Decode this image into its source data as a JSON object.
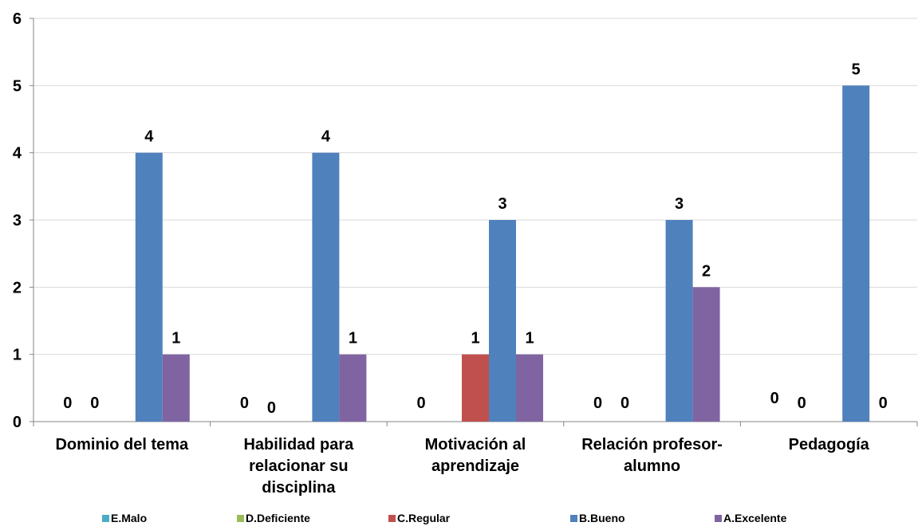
{
  "chart_data": {
    "type": "bar",
    "title": "",
    "xlabel": "",
    "ylabel": "",
    "ylim": [
      0,
      6
    ],
    "yticks": [
      "0",
      "1",
      "2",
      "3",
      "4",
      "5",
      "6"
    ],
    "grid": true,
    "legend_position": "bottom",
    "categories": [
      [
        "Dominio del tema"
      ],
      [
        "Habilidad para",
        "relacionar su",
        "disciplina"
      ],
      [
        "Motivación al",
        "aprendizaje"
      ],
      [
        "Relación profesor-",
        "alumno"
      ],
      [
        "Pedagogía"
      ]
    ],
    "series": [
      {
        "name": "E.Malo",
        "color": "#4bacc6",
        "values": [
          0,
          0,
          0,
          0,
          0
        ]
      },
      {
        "name": "D.Deficiente",
        "color": "#9bbb59",
        "values": [
          0,
          0,
          0,
          0,
          0
        ]
      },
      {
        "name": "C.Regular",
        "color": "#c0504d",
        "values": [
          0,
          0,
          1,
          0,
          0
        ]
      },
      {
        "name": "B.Bueno",
        "color": "#4f81bd",
        "values": [
          4,
          4,
          3,
          3,
          5
        ]
      },
      {
        "name": "A.Excelente",
        "color": "#8064a2",
        "values": [
          1,
          1,
          1,
          2,
          0
        ]
      }
    ],
    "data_labels": [
      [
        "0",
        "0",
        "",
        "4",
        "1"
      ],
      [
        "0",
        "0",
        "",
        "4",
        "1"
      ],
      [
        "0",
        "",
        "1",
        "3",
        "1"
      ],
      [
        "0",
        "0",
        "",
        "3",
        "2"
      ],
      [
        "0",
        "0",
        "",
        "5",
        "0"
      ]
    ]
  }
}
